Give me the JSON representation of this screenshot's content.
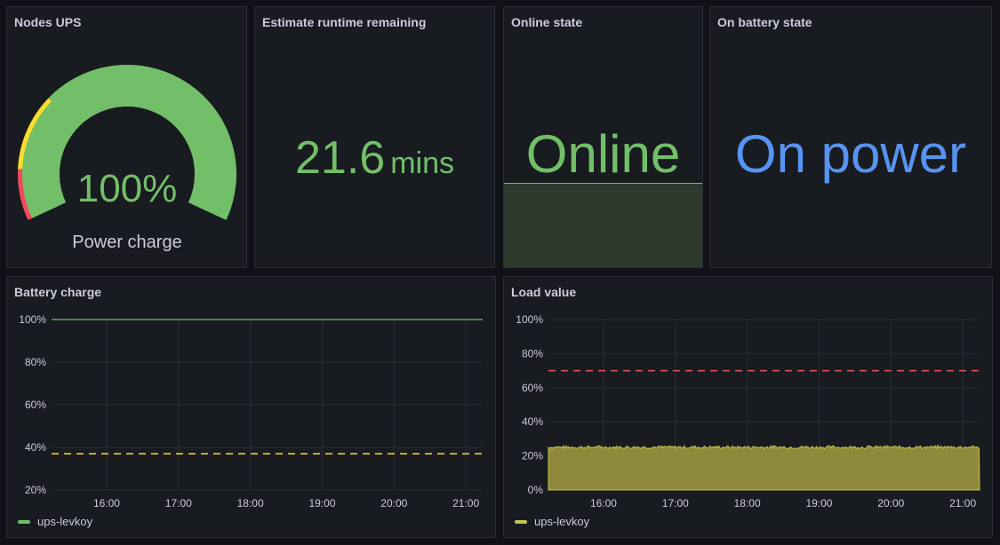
{
  "panels": {
    "nodes_ups": {
      "title": "Nodes UPS",
      "value": "100%",
      "label": "Power charge",
      "charge_fraction": 1.0
    },
    "runtime": {
      "title": "Estimate runtime remaining",
      "value": "21.6",
      "unit": "mins"
    },
    "online": {
      "title": "Online state",
      "value": "Online"
    },
    "battery_state": {
      "title": "On battery state",
      "value": "On power"
    },
    "battery_charge": {
      "title": "Battery charge",
      "legend": "ups-levkoy"
    },
    "load_value": {
      "title": "Load value",
      "legend": "ups-levkoy"
    }
  },
  "colors": {
    "green": "#73bf69",
    "yellow": "#fade2a",
    "red": "#f2495c",
    "blue": "#5794f2",
    "load_fill": "#8f8a3b",
    "load_line": "#c8c44f",
    "threshold_red": "#e0575b"
  },
  "chart_data": [
    {
      "type": "line",
      "title": "Battery charge",
      "x_ticks": [
        "16:00",
        "17:00",
        "18:00",
        "19:00",
        "20:00",
        "21:00"
      ],
      "y_ticks": [
        "100%",
        "80%",
        "60%",
        "40%",
        "20%"
      ],
      "ylim": [
        20,
        100
      ],
      "series": [
        {
          "name": "ups-levkoy",
          "x": [
            "15:14",
            "21:14"
          ],
          "values": [
            100,
            100
          ]
        }
      ],
      "threshold": 37,
      "grid": true,
      "legend": "bottom-left"
    },
    {
      "type": "area",
      "title": "Load value",
      "x_ticks": [
        "16:00",
        "17:00",
        "18:00",
        "19:00",
        "20:00",
        "21:00"
      ],
      "y_ticks": [
        "100%",
        "80%",
        "60%",
        "40%",
        "20%",
        "0%"
      ],
      "ylim": [
        0,
        100
      ],
      "series": [
        {
          "name": "ups-levkoy",
          "x": [
            "15:14",
            "21:14"
          ],
          "values": [
            24,
            24
          ],
          "approx_range": [
            22,
            26
          ]
        }
      ],
      "threshold": 70,
      "grid": true,
      "legend": "bottom-left"
    }
  ]
}
